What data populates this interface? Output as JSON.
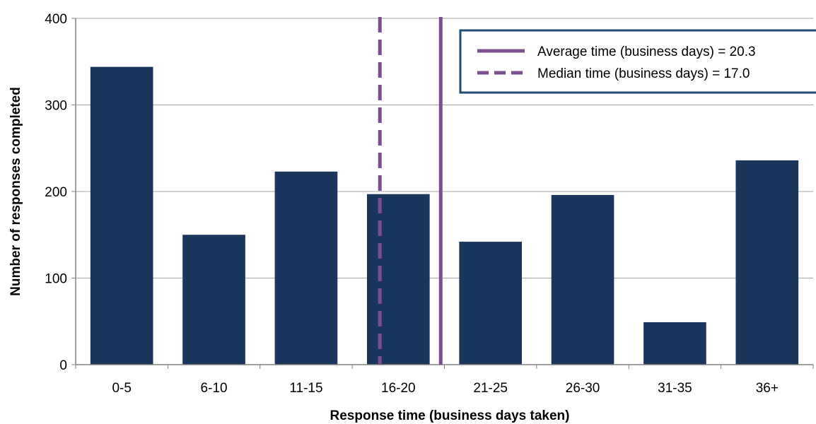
{
  "chart_data": {
    "type": "bar",
    "title": "",
    "xlabel": "Response time (business days taken)",
    "ylabel": "Number of responses completed",
    "categories": [
      "0-5",
      "6-10",
      "11-15",
      "16-20",
      "21-25",
      "26-30",
      "31-35",
      "36+"
    ],
    "values": [
      344,
      150,
      223,
      197,
      142,
      196,
      49,
      236
    ],
    "ylim": [
      0,
      400
    ],
    "yticks": [
      0,
      100,
      200,
      300,
      400
    ],
    "grid": "horizontal",
    "bar_color": "#1a365d",
    "reference_lines": [
      {
        "label": "Average time (business days) = 20.3",
        "value": 20.3,
        "style": "solid",
        "color": "#7b4f8e"
      },
      {
        "label": "Median time (business days)  = 17.0",
        "value": 17.0,
        "style": "dashed",
        "color": "#7b4f8e"
      }
    ],
    "legend_position": "top-right",
    "legend_border_color": "#1f4e79"
  }
}
